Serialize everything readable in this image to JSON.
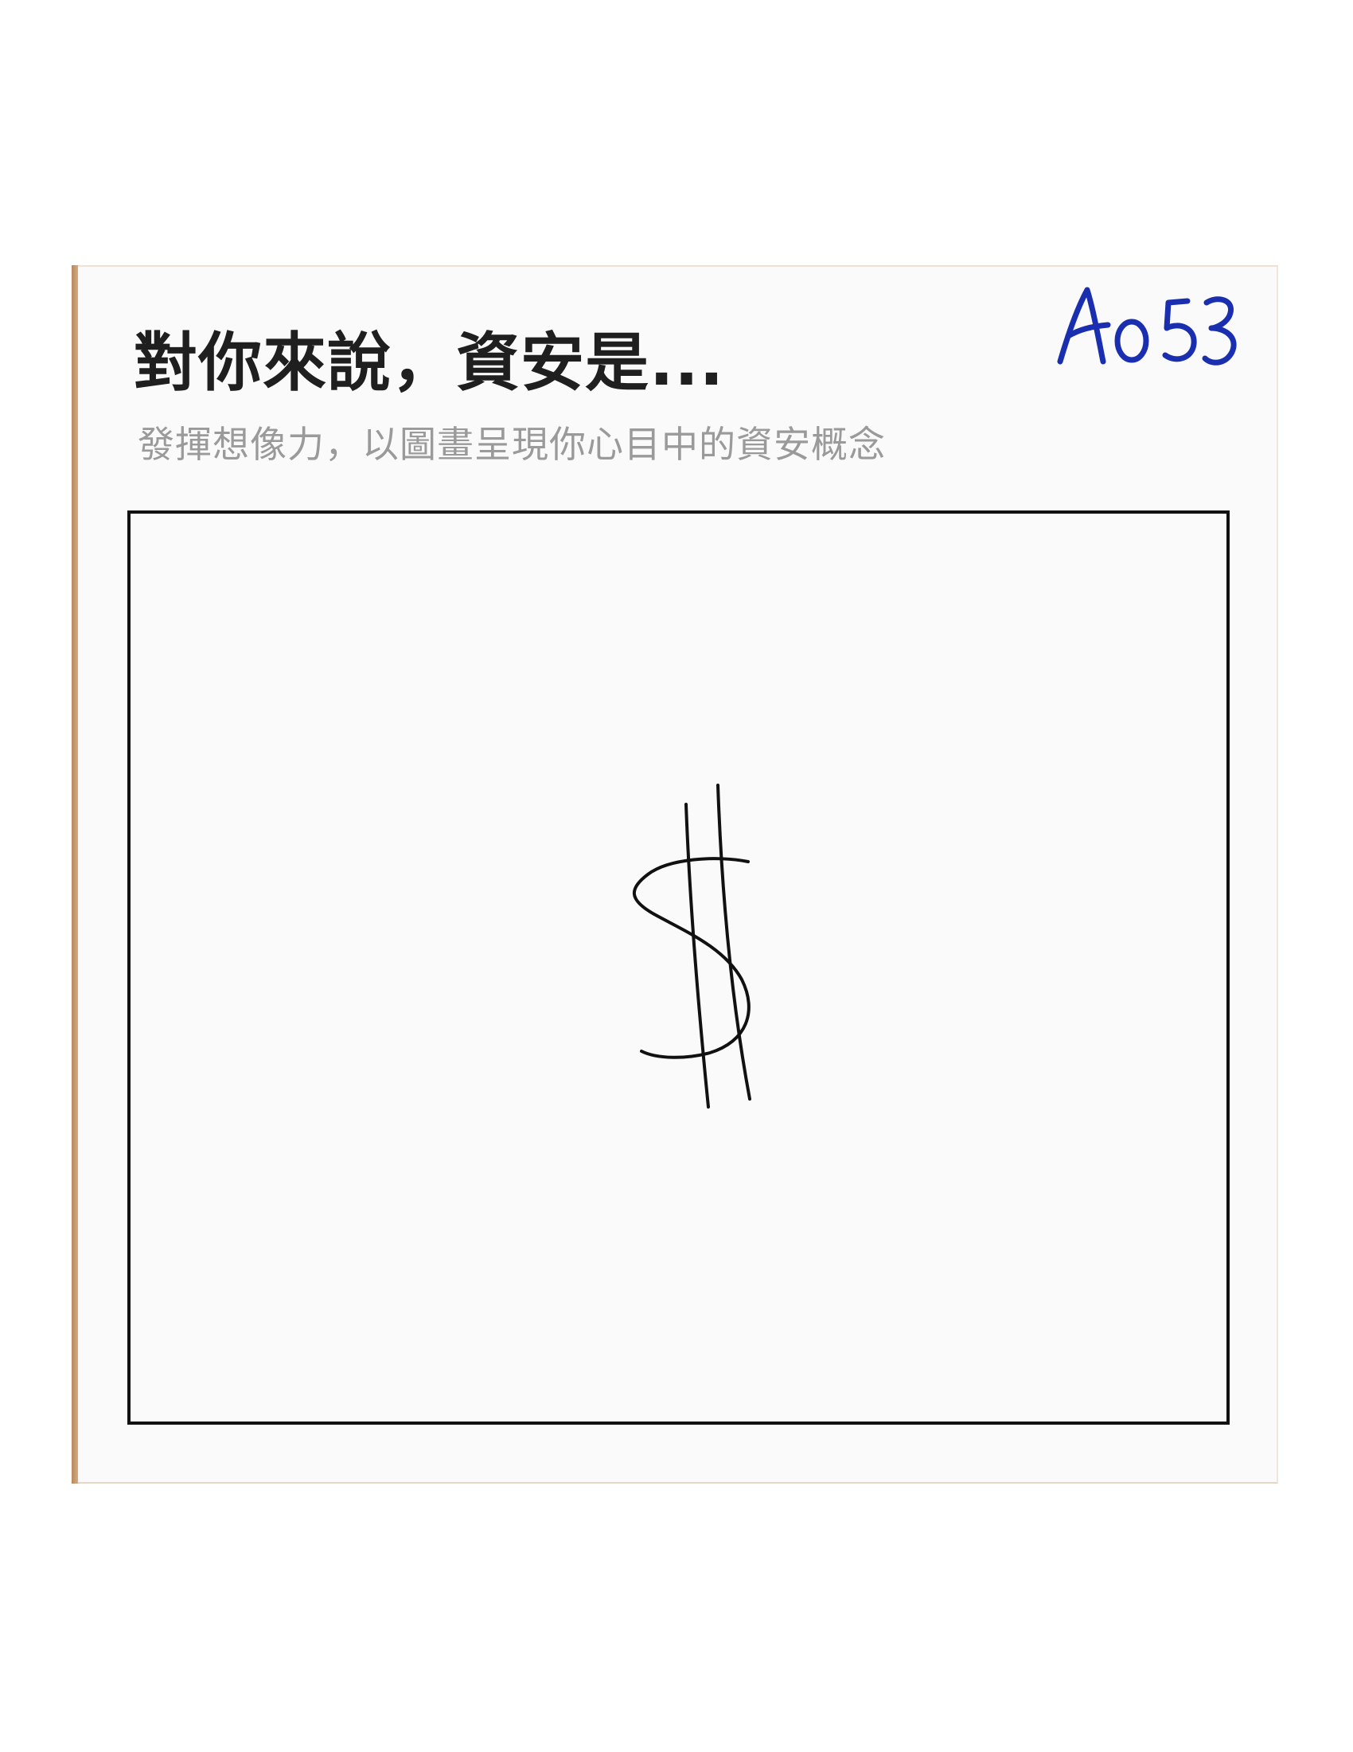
{
  "card": {
    "title": "對你來說，資安是...",
    "subtitle": "發揮想像力，以圖畫呈現你心目中的資安概念",
    "code": "A053"
  },
  "drawing": {
    "icon": "dollar-sign-icon"
  }
}
